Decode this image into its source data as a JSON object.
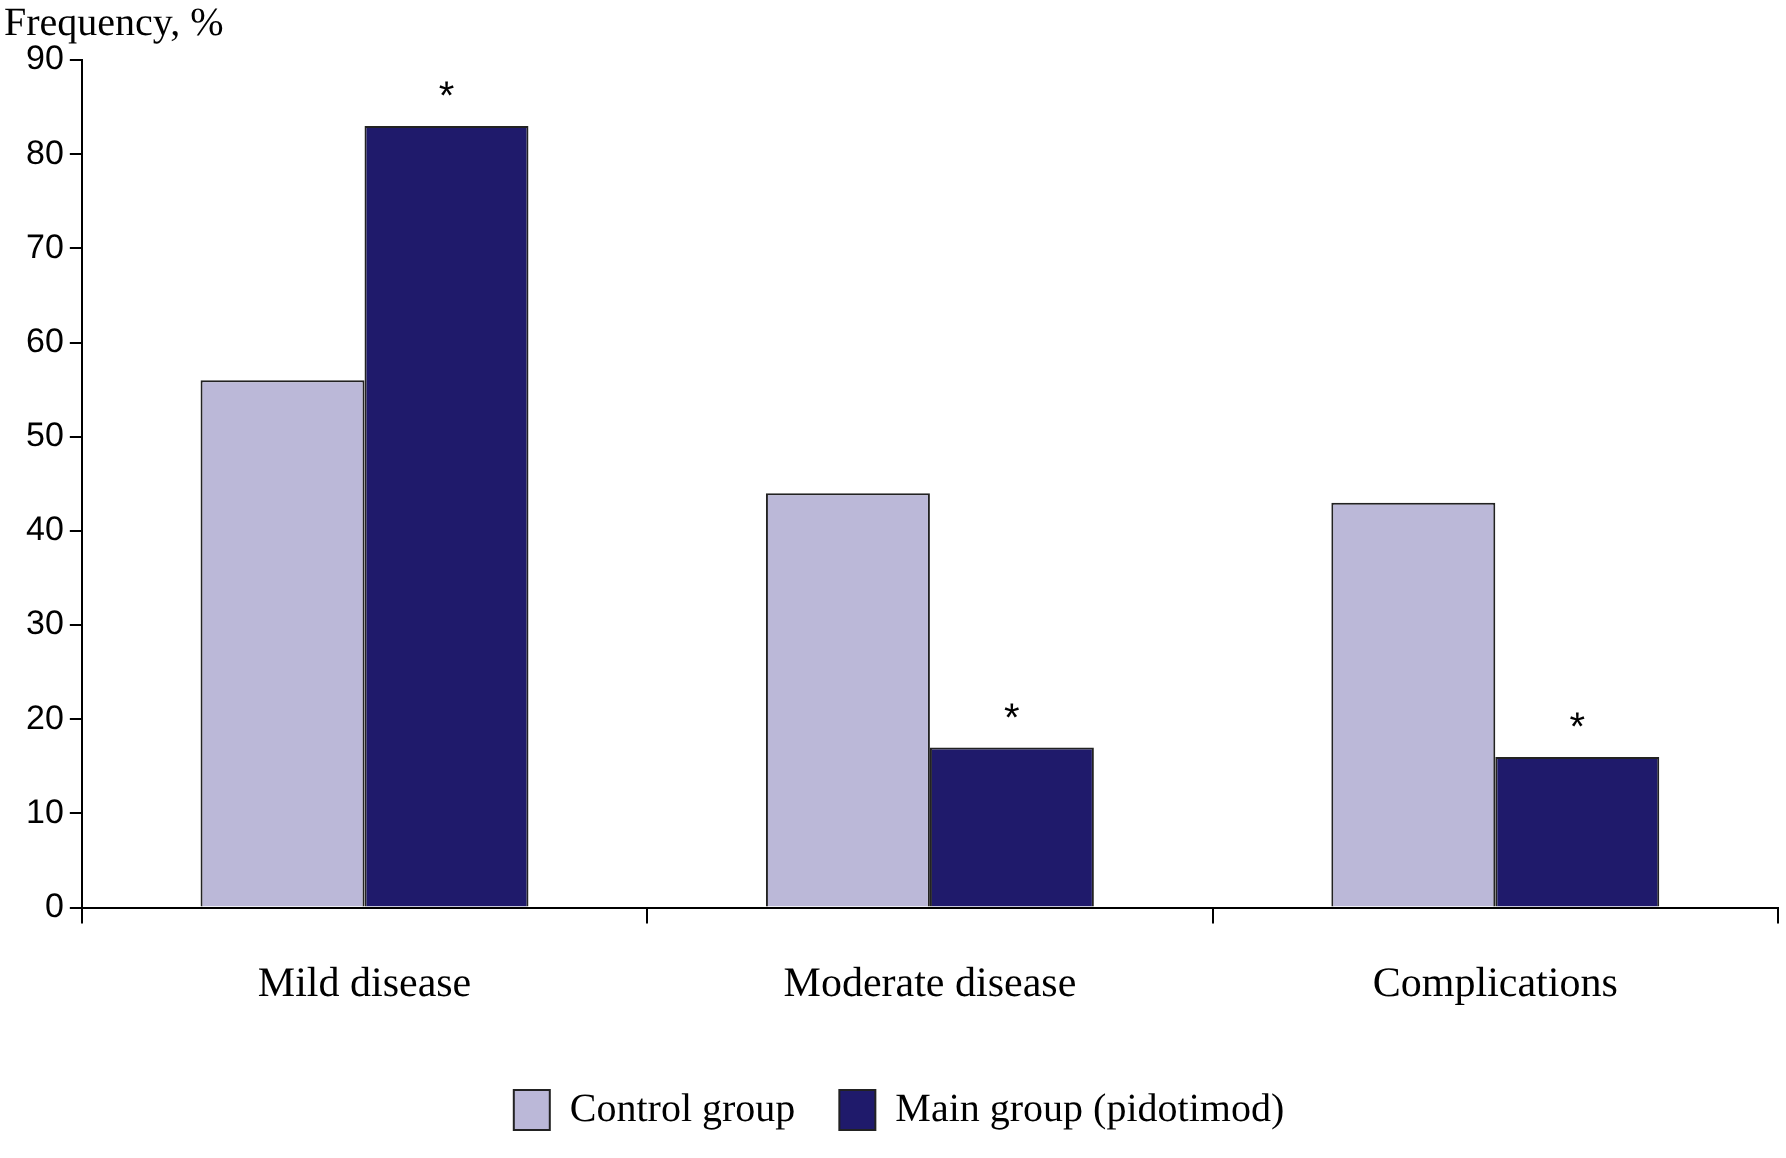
{
  "chart_data": {
    "type": "bar",
    "ylabel": "Frequency, %",
    "categories": [
      "Mild disease",
      "Moderate disease",
      "Complications"
    ],
    "series": [
      {
        "name": "Control group",
        "color": "#bbb8d8",
        "values": [
          56,
          44,
          43
        ]
      },
      {
        "name": "Main group (pidotimod)",
        "color": "#1f1a6b",
        "values": [
          83,
          17,
          16
        ]
      }
    ],
    "ylim": [
      0,
      90
    ],
    "yticks": [
      0,
      10,
      20,
      30,
      40,
      50,
      60,
      70,
      80,
      90
    ],
    "grid": false,
    "legend": "bottom",
    "annotations": [
      {
        "text": "*",
        "x": "Mild disease",
        "y": 83
      },
      {
        "text": "*",
        "x": "Moderate disease",
        "y": 17
      },
      {
        "text": "*",
        "x": "Complications",
        "y": 16
      }
    ]
  }
}
